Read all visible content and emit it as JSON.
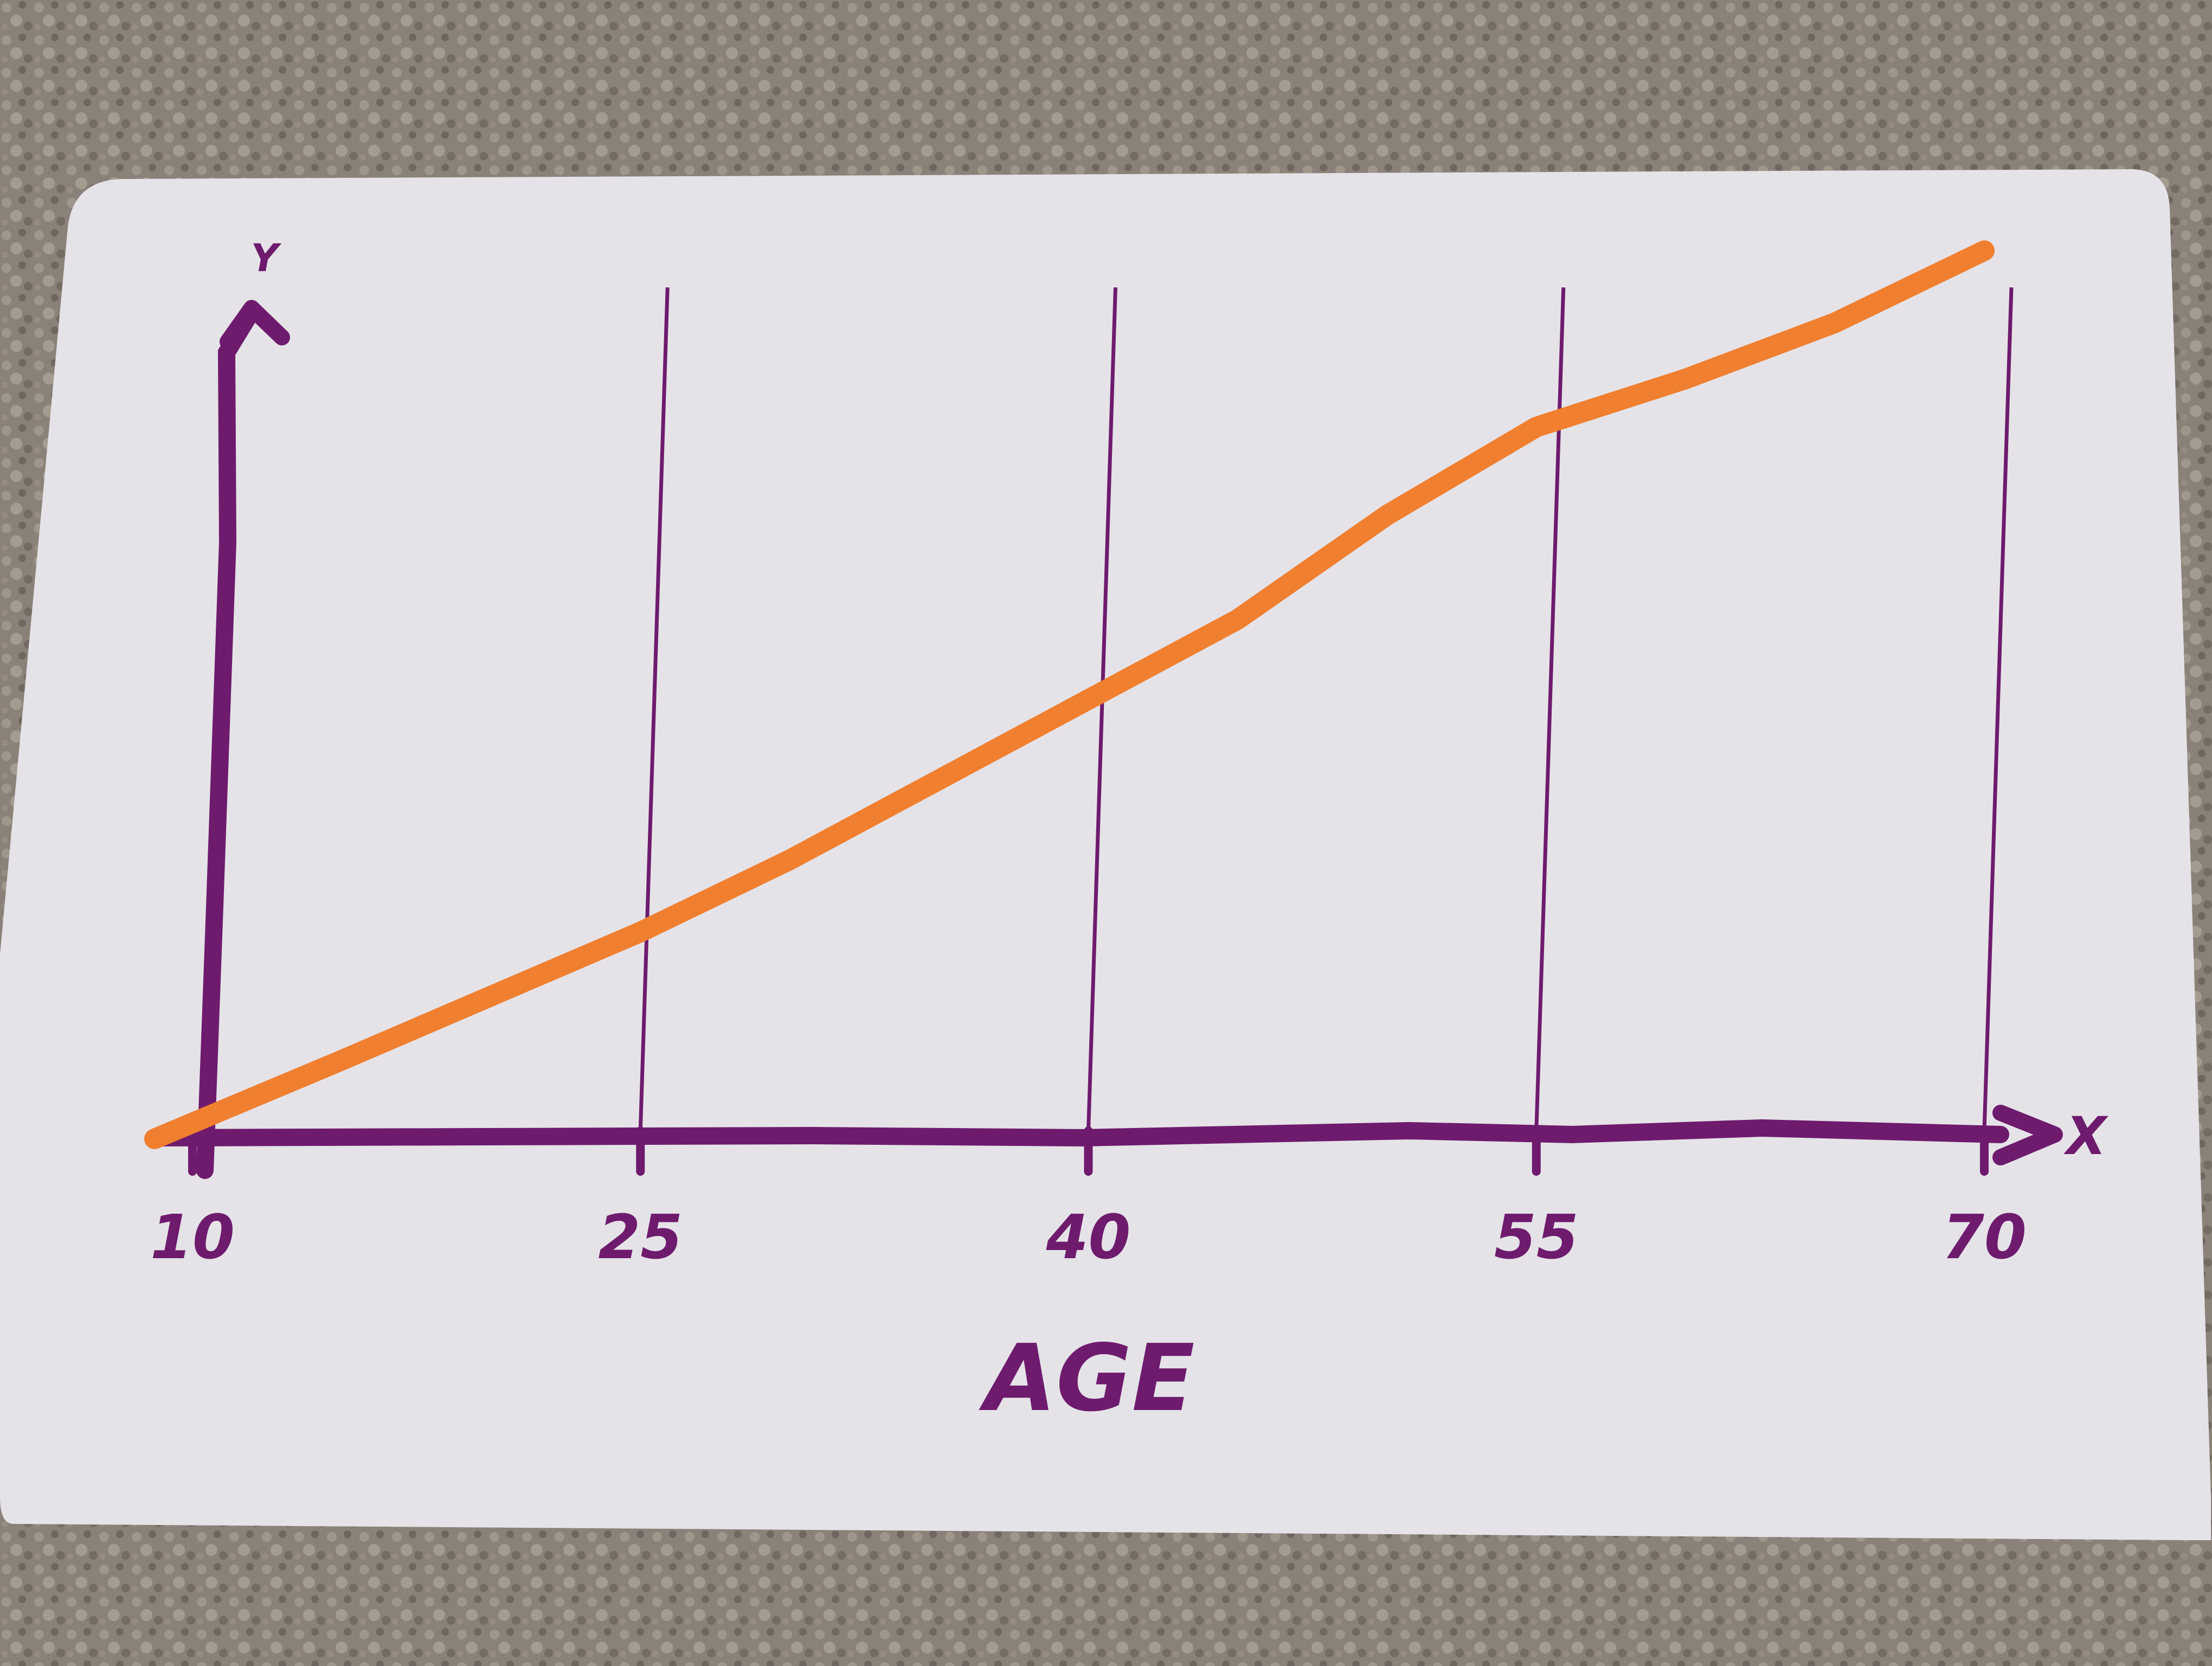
{
  "chart_data": {
    "type": "line",
    "title": "",
    "xlabel": "AGE",
    "ylabel": "",
    "x_axis_letter": "X",
    "y_axis_letter": "Y",
    "x_ticks": [
      "10",
      "25",
      "40",
      "55",
      "70"
    ],
    "xlim": [
      10,
      70
    ],
    "ylim": [
      0,
      1
    ],
    "grid": "vertical lines at x ticks",
    "series": [
      {
        "color": "#f07f2f",
        "points": [
          {
            "x": 10,
            "y": 0.0
          },
          {
            "x": 15,
            "y": 0.09
          },
          {
            "x": 20,
            "y": 0.17
          },
          {
            "x": 25,
            "y": 0.25
          },
          {
            "x": 30,
            "y": 0.34
          },
          {
            "x": 35,
            "y": 0.44
          },
          {
            "x": 40,
            "y": 0.54
          },
          {
            "x": 45,
            "y": 0.64
          },
          {
            "x": 50,
            "y": 0.77
          },
          {
            "x": 55,
            "y": 0.88
          },
          {
            "x": 60,
            "y": 0.94
          },
          {
            "x": 65,
            "y": 1.01
          },
          {
            "x": 70,
            "y": 1.1
          }
        ]
      }
    ]
  },
  "colors": {
    "axis": "#6e1b6e",
    "line": "#f07f2f",
    "card": "#e5e3e8",
    "background": "#8a8178"
  }
}
